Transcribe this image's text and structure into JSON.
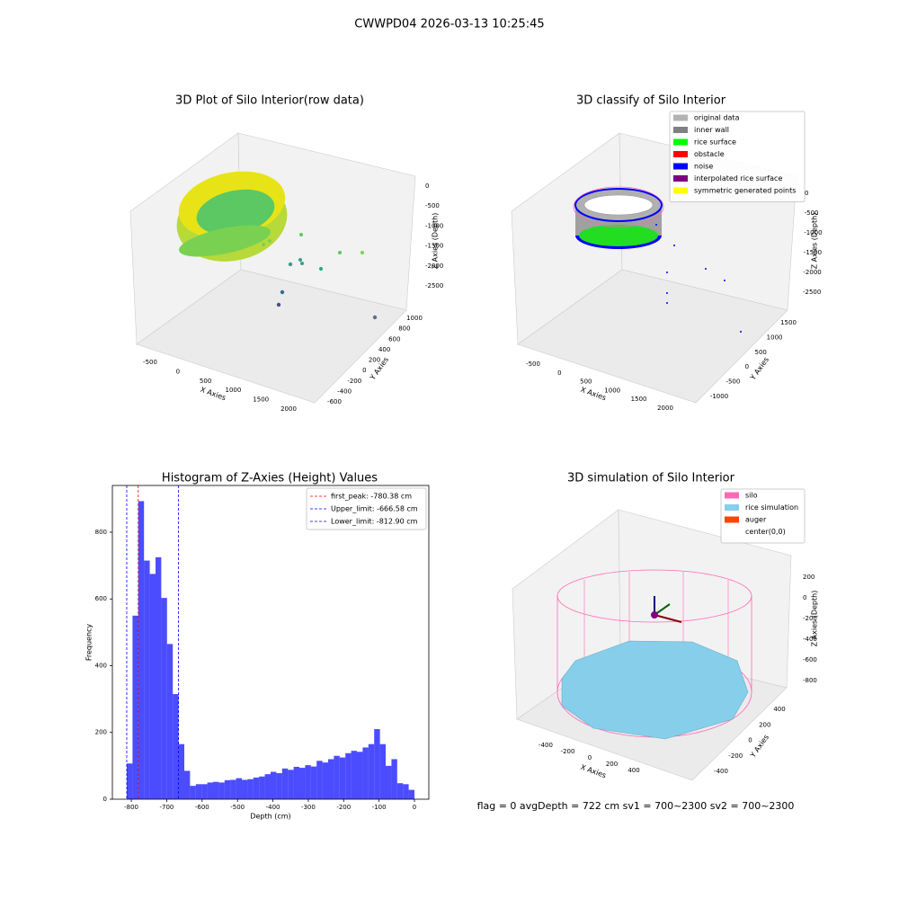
{
  "suptitle": "CWWPD04 2026-03-13 10:25:45",
  "footer": "flag = 0     avgDepth = 722 cm  sv1 = 700~2300  sv2 = 700~2300",
  "chart_data": [
    {
      "type": "scatter3d",
      "title": "3D Plot of Silo Interior(row data)",
      "xlabel": "X Axies",
      "ylabel": "Y Axies",
      "zlabel": "Z Axies (Depth)",
      "xticks": [
        -500,
        0,
        500,
        1000,
        1500,
        2000
      ],
      "yticks": [
        -600,
        -400,
        -200,
        0,
        200,
        400,
        600,
        800,
        1000
      ],
      "zticks": [
        0,
        -500,
        -1000,
        -1500,
        -2000,
        -2500
      ]
    },
    {
      "type": "scatter3d",
      "title": "3D classify of Silo Interior",
      "xlabel": "X Axies",
      "ylabel": "Y Axies",
      "zlabel": "Z Axies (Depth)",
      "xticks": [
        -500,
        0,
        500,
        1000,
        1500,
        2000
      ],
      "yticks": [
        -1000,
        -500,
        0,
        500,
        1000,
        1500
      ],
      "zticks": [
        0,
        -500,
        -1000,
        -1500,
        -2000,
        -2500
      ],
      "series": [
        {
          "name": "original data",
          "color": "#b3b3b3"
        },
        {
          "name": "inner wall",
          "color": "#808080"
        },
        {
          "name": "rice surface",
          "color": "#00ff00"
        },
        {
          "name": "obstacle",
          "color": "#ff0000"
        },
        {
          "name": "noise",
          "color": "#0000ff"
        },
        {
          "name": "interpolated rice surface",
          "color": "#800080"
        },
        {
          "name": "symmetric generated points",
          "color": "#ffff00"
        }
      ]
    },
    {
      "type": "histogram",
      "title": "Histogram of Z-Axies (Height) Values",
      "xlabel": "Depth (cm)",
      "ylabel": "Frequency",
      "color": "#0000ff",
      "bins": [
        -812.9,
        -796.6,
        -780.4,
        -764.1,
        -747.9,
        -731.6,
        -715.4,
        -699.1,
        -682.8,
        -666.6,
        -650.3,
        -634.1,
        -617.8,
        -601.5,
        -585.3,
        -569.0,
        -552.8,
        -536.5,
        -520.3,
        -504.0,
        -487.7,
        -471.5,
        -455.2,
        -439.0,
        -422.7,
        -406.5,
        -390.2,
        -373.9,
        -357.7,
        -341.4,
        -325.2,
        -308.9,
        -292.6,
        -276.4,
        -260.1,
        -243.9,
        -227.6,
        -211.4,
        -195.1,
        -178.8,
        -162.6,
        -146.3,
        -130.1,
        -113.8,
        -97.5,
        -81.3,
        -65.0,
        -48.8,
        -32.5,
        -16.3,
        0
      ],
      "values": [
        107,
        550,
        893,
        715,
        675,
        725,
        603,
        465,
        315,
        165,
        85,
        40,
        45,
        45,
        50,
        52,
        50,
        57,
        58,
        63,
        58,
        60,
        65,
        68,
        75,
        82,
        78,
        92,
        88,
        97,
        94,
        102,
        98,
        115,
        110,
        120,
        130,
        125,
        138,
        145,
        142,
        155,
        165,
        210,
        165,
        100,
        120,
        48,
        45,
        28
      ],
      "xlim": [
        -853.5,
        40.6
      ],
      "ylim": [
        0,
        940
      ],
      "xticks": [
        -800,
        -700,
        -600,
        -500,
        -400,
        -300,
        -200,
        -100,
        0
      ],
      "yticks": [
        0,
        200,
        400,
        600,
        800
      ],
      "vlines": [
        {
          "value": -780.38,
          "label": "first_peak: -780.38 cm",
          "color": "#ff0000"
        },
        {
          "value": -666.58,
          "label": "Upper_limit: -666.58 cm",
          "color": "#0000ff"
        },
        {
          "value": -812.9,
          "label": "Lower_limit: -812.90 cm",
          "color": "#0000ff"
        }
      ]
    },
    {
      "type": "scatter3d",
      "title": "3D simulation of Silo Interior",
      "xlabel": "X Axies",
      "ylabel": "Y Axies",
      "zlabel": "Z Axies (Depth)",
      "xticks": [
        -400,
        -200,
        0,
        200,
        400
      ],
      "yticks": [
        -400,
        -200,
        0,
        200,
        400
      ],
      "zticks": [
        200,
        0,
        -200,
        -400,
        -600,
        -800
      ],
      "series": [
        {
          "name": "silo",
          "color": "#ff69b4"
        },
        {
          "name": "rice simulation",
          "color": "#87ceeb"
        },
        {
          "name": "auger",
          "color": "#ff4500"
        },
        {
          "name": "center(0,0)",
          "color": "#ffffff"
        }
      ]
    }
  ]
}
